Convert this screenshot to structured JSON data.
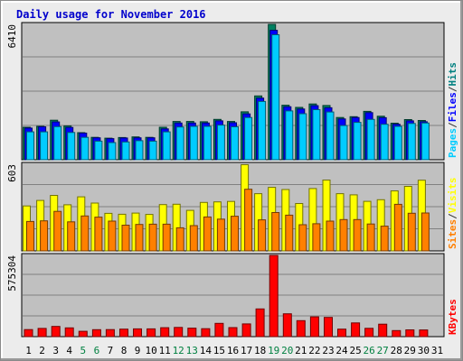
{
  "chart_data": {
    "type": "bar",
    "title": "Daily usage for November 2016",
    "categories": [
      "1",
      "2",
      "3",
      "4",
      "5",
      "6",
      "7",
      "8",
      "9",
      "10",
      "11",
      "12",
      "13",
      "14",
      "15",
      "16",
      "17",
      "18",
      "19",
      "20",
      "21",
      "22",
      "23",
      "24",
      "25",
      "26",
      "27",
      "28",
      "29",
      "30",
      "31"
    ],
    "weekend_days": [
      "5",
      "6",
      "12",
      "13",
      "19",
      "20",
      "26",
      "27"
    ],
    "panels": [
      {
        "id": "hits-files-pages",
        "max_label": "6410",
        "max_value": 6410,
        "legend": [
          {
            "label": "Pages",
            "color": "#00ccff"
          },
          {
            "label": "/",
            "color": "#333333"
          },
          {
            "label": "Files",
            "color": "#0000ff"
          },
          {
            "label": "/",
            "color": "#333333"
          },
          {
            "label": "Hits",
            "color": "#008080"
          }
        ],
        "series": [
          {
            "name": "Hits",
            "color": "#008060",
            "values": [
              1540,
              1580,
              1870,
              1600,
              1280,
              1060,
              1020,
              1050,
              1080,
              1060,
              1540,
              1810,
              1810,
              1800,
              1910,
              1810,
              2270,
              3020,
              6410,
              2580,
              2480,
              2640,
              2570,
              2000,
              2040,
              2290,
              2060,
              1730,
              1900,
              1860
            ]
          },
          {
            "name": "Files",
            "color": "#0000ff",
            "values": [
              1500,
              1560,
              1790,
              1530,
              1260,
              1040,
              1000,
              1030,
              1040,
              1040,
              1460,
              1740,
              1740,
              1740,
              1840,
              1750,
              2170,
              2920,
              6130,
              2510,
              2400,
              2560,
              2460,
              1930,
              2000,
              2230,
              1990,
              1680,
              1840,
              1800
            ]
          },
          {
            "name": "Pages",
            "color": "#00ccff",
            "values": [
              1320,
              1320,
              1570,
              1290,
              1060,
              880,
              810,
              840,
              900,
              880,
              1320,
              1550,
              1580,
              1580,
              1640,
              1560,
              2000,
              2760,
              5920,
              2310,
              2180,
              2370,
              2260,
              1620,
              1770,
              1910,
              1680,
              1580,
              1720,
              1740
            ]
          }
        ]
      },
      {
        "id": "visits-sites",
        "max_label": "603",
        "max_value": 603,
        "legend": [
          {
            "label": "Sites",
            "color": "#ff8000"
          },
          {
            "label": "/",
            "color": "#333333"
          },
          {
            "label": "Visits",
            "color": "#ffff00"
          }
        ],
        "series": [
          {
            "name": "Visits",
            "color": "#ffff00",
            "values": [
              313,
              351,
              386,
              321,
              376,
              333,
              261,
              255,
              263,
              254,
              322,
              325,
              282,
              337,
              341,
              344,
              600,
              398,
              442,
              427,
              330,
              434,
              493,
              398,
              390,
              345,
              356,
              418,
              449,
              492
            ]
          },
          {
            "name": "Sites",
            "color": "#ff8000",
            "values": [
              205,
              209,
              275,
              202,
              243,
              235,
              207,
              179,
              184,
              186,
              186,
              161,
              176,
              236,
              221,
              241,
              429,
              216,
              267,
              249,
              182,
              189,
              207,
              218,
              218,
              187,
              172,
              324,
              262,
              264
            ]
          }
        ]
      },
      {
        "id": "kbytes",
        "max_label": "575304",
        "max_value": 575304,
        "legend": [
          {
            "label": "KBytes",
            "color": "#ff0000"
          }
        ],
        "series": [
          {
            "name": "KBytes",
            "color": "#ff0000",
            "values": [
              50000,
              58000,
              72000,
              62000,
              38000,
              49000,
              50000,
              53000,
              55000,
              55000,
              63000,
              65000,
              60000,
              56000,
              94000,
              64000,
              90000,
              196000,
              575304,
              162000,
              113000,
              140000,
              136000,
              53000,
              97000,
              59000,
              88000,
              43000,
              48000,
              47000
            ]
          }
        ]
      }
    ]
  }
}
